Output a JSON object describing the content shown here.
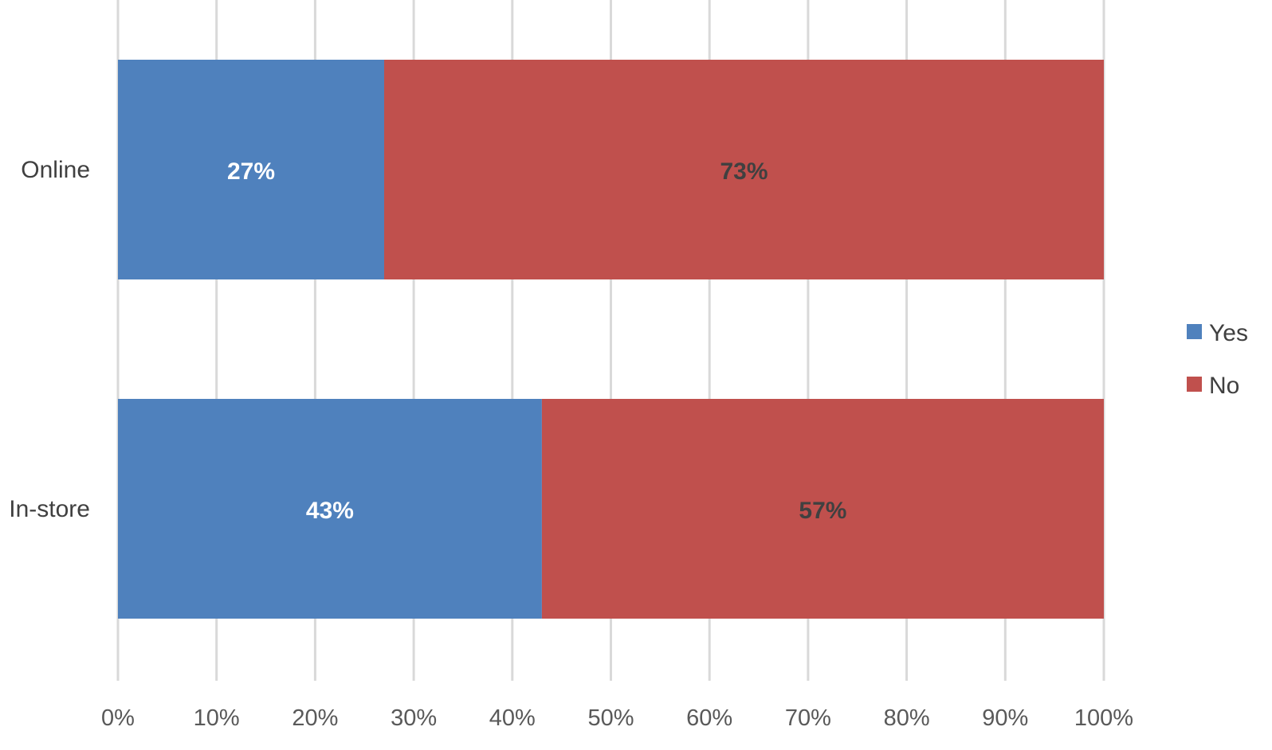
{
  "chart_data": {
    "type": "bar",
    "orientation": "horizontal",
    "stacked": "percent",
    "categories": [
      "Online",
      "In-store"
    ],
    "series": [
      {
        "name": "Yes",
        "color": "#4f81bd",
        "values": [
          27,
          43
        ],
        "labels": [
          "27%",
          "43%"
        ],
        "label_color": "#ffffff"
      },
      {
        "name": "No",
        "color": "#c0504d",
        "values": [
          73,
          57
        ],
        "labels": [
          "73%",
          "57%"
        ],
        "label_color": "#404040"
      }
    ],
    "xlim": [
      0,
      100
    ],
    "xticks": [
      0,
      10,
      20,
      30,
      40,
      50,
      60,
      70,
      80,
      90,
      100
    ],
    "xtick_labels": [
      "0%",
      "10%",
      "20%",
      "30%",
      "40%",
      "50%",
      "60%",
      "70%",
      "80%",
      "90%",
      "100%"
    ],
    "grid": true,
    "legend_position": "right",
    "title": "",
    "xlabel": "",
    "ylabel": ""
  }
}
